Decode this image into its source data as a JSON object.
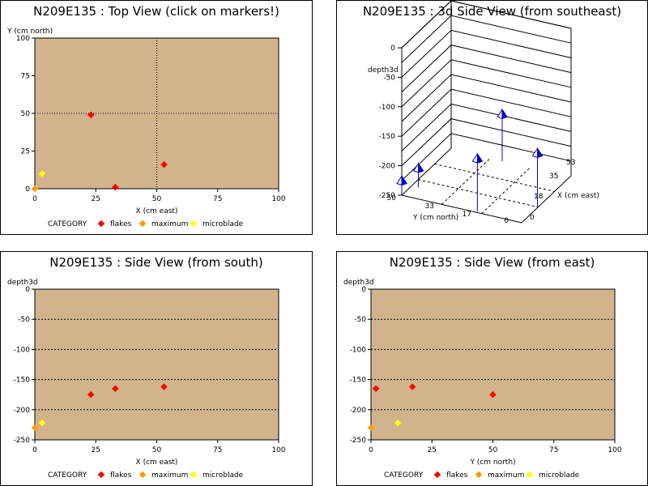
{
  "chart_data": [
    {
      "type": "scatter",
      "title": "N209E135 : Top View (click on markers!)",
      "xlabel": "X (cm east)",
      "ylabel": "Y (cm north)",
      "xlim": [
        0,
        100
      ],
      "ylim": [
        0,
        100
      ],
      "xticks": [
        "0",
        "25",
        "50",
        "75",
        "100"
      ],
      "yticks": [
        "0",
        "25",
        "50",
        "75",
        "100"
      ],
      "reference_lines": {
        "x": [
          50
        ],
        "y": [
          50
        ]
      },
      "background": "#d2b48c",
      "legend": {
        "title": "CATEGORY",
        "position": "bottom",
        "entries": [
          "flakes",
          "maximum",
          "microblade"
        ]
      },
      "series": [
        {
          "name": "flakes",
          "color": "#ff0000",
          "points": [
            [
              23,
              49
            ],
            [
              53,
              16
            ],
            [
              33,
              1
            ]
          ]
        },
        {
          "name": "maximum",
          "color": "#ff9900",
          "points": [
            [
              0,
              0
            ]
          ]
        },
        {
          "name": "microblade",
          "color": "#ffff00",
          "points": [
            [
              3,
              10
            ]
          ]
        }
      ]
    },
    {
      "type": "scatter3d",
      "title": "N209E135 : 3d Side View (from southeast)",
      "zlabel": "depth3d",
      "ylabel": "Y (cm north)",
      "xlabel": "X (cm east)",
      "zticks": [
        "0",
        "-50",
        "-100",
        "-150",
        "-200",
        "-250"
      ],
      "zticks_all": [
        "0",
        "-25",
        "-50",
        "-75",
        "-100",
        "-125",
        "-150",
        "-175",
        "-200",
        "-225",
        "-250"
      ],
      "yticks": [
        "50",
        "33",
        "17",
        "0"
      ],
      "xticks": [
        "0",
        "18",
        "35",
        "53"
      ],
      "marker_color": "#0000cc",
      "points": [
        {
          "x": 3,
          "y": 10,
          "z": -222
        },
        {
          "x": 0,
          "y": 0,
          "z": -230
        },
        {
          "x": 23,
          "y": 49,
          "z": -175
        },
        {
          "x": 53,
          "y": 16,
          "z": -162
        },
        {
          "x": 33,
          "y": 1,
          "z": -165
        }
      ]
    },
    {
      "type": "scatter",
      "title": "N209E135 : Side View (from south)",
      "xlabel": "X (cm east)",
      "ylabel": "depth3d",
      "xlim": [
        0,
        100
      ],
      "ylim": [
        -250,
        0
      ],
      "xticks": [
        "0",
        "25",
        "50",
        "75",
        "100"
      ],
      "yticks": [
        "0",
        "-50",
        "-100",
        "-150",
        "-200",
        "-250"
      ],
      "background": "#d2b48c",
      "legend": {
        "title": "CATEGORY",
        "position": "bottom",
        "entries": [
          "flakes",
          "maximum",
          "microblade"
        ]
      },
      "series": [
        {
          "name": "flakes",
          "color": "#ff0000",
          "points": [
            [
              23,
              -175
            ],
            [
              33,
              -165
            ],
            [
              53,
              -162
            ]
          ]
        },
        {
          "name": "maximum",
          "color": "#ff9900",
          "points": [
            [
              0,
              -230
            ]
          ]
        },
        {
          "name": "microblade",
          "color": "#ffff00",
          "points": [
            [
              3,
              -222
            ]
          ]
        }
      ]
    },
    {
      "type": "scatter",
      "title": "N209E135 : Side View (from east)",
      "xlabel": "Y (cm north)",
      "ylabel": "depth3d",
      "xlim": [
        0,
        100
      ],
      "ylim": [
        -250,
        0
      ],
      "xticks": [
        "0",
        "25",
        "50",
        "75",
        "100"
      ],
      "yticks": [
        "0",
        "-50",
        "-100",
        "-150",
        "-200",
        "-250"
      ],
      "background": "#d2b48c",
      "legend": {
        "title": "CATEGORY",
        "position": "bottom",
        "entries": [
          "flakes",
          "maximum",
          "microblade"
        ]
      },
      "series": [
        {
          "name": "flakes",
          "color": "#ff0000",
          "points": [
            [
              2,
              -165
            ],
            [
              17,
              -162
            ],
            [
              50,
              -175
            ]
          ]
        },
        {
          "name": "maximum",
          "color": "#ff9900",
          "points": [
            [
              0,
              -230
            ]
          ]
        },
        {
          "name": "microblade",
          "color": "#ffff00",
          "points": [
            [
              11,
              -222
            ]
          ]
        }
      ]
    }
  ]
}
